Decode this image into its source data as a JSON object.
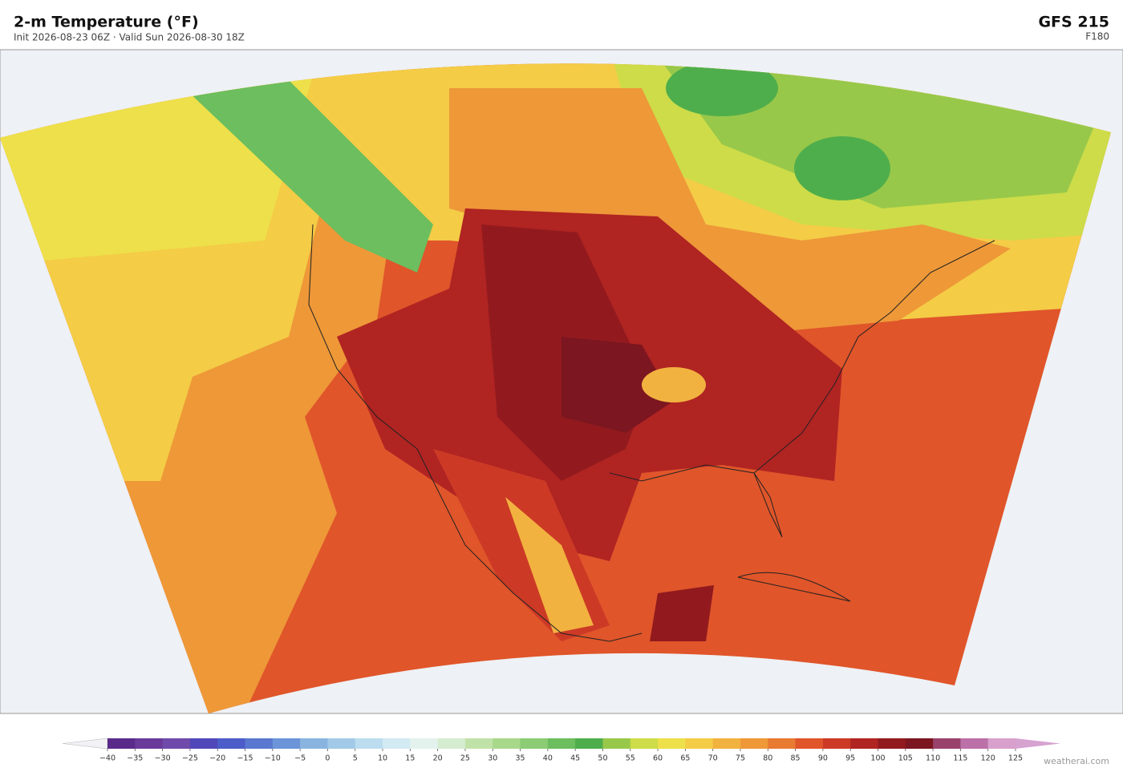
{
  "header": {
    "title": "2-m Temperature  (°F)",
    "subtitle": "Init 2026-08-23 06Z  ·  Valid Sun 2026-08-30 18Z",
    "model": "GFS  215",
    "forecast_hour": "F180"
  },
  "colorbar": {
    "ticks": [
      {
        "value": -40,
        "label": "−40"
      },
      {
        "value": -35,
        "label": "−35"
      },
      {
        "value": -30,
        "label": "−30"
      },
      {
        "value": -25,
        "label": "−25"
      },
      {
        "value": -20,
        "label": "−20"
      },
      {
        "value": -15,
        "label": "−15"
      },
      {
        "value": -10,
        "label": "−10"
      },
      {
        "value": -5,
        "label": "−5"
      },
      0,
      5,
      10,
      15,
      20,
      25,
      30,
      35,
      40,
      45,
      50,
      55,
      60,
      65,
      70,
      75,
      80,
      85,
      90,
      95,
      100,
      105,
      110,
      115,
      120,
      125
    ],
    "colors": [
      "#5a2a8a",
      "#6a3a9a",
      "#6f4aaa",
      "#5048b8",
      "#4c5cc8",
      "#5a78d0",
      "#6c94d8",
      "#8ab4e0",
      "#a2cae8",
      "#bcdcef",
      "#d2eaf2",
      "#e4f2ee",
      "#d6ecd0",
      "#c0e2a8",
      "#a8d88a",
      "#8ccc74",
      "#6cbe5e",
      "#4fae4c",
      "#98c84a",
      "#cddc48",
      "#eee04a",
      "#f4cc46",
      "#f2b240",
      "#ee9838",
      "#e87a32",
      "#e0552a",
      "#cc3a26",
      "#b02422",
      "#921a1e",
      "#7c1620",
      "#98426c",
      "#bc70a8",
      "#d8a0cc"
    ],
    "under_color": "#f2f2f6",
    "over_color": "#d6a2d0"
  },
  "credit": "weatherai.com"
}
